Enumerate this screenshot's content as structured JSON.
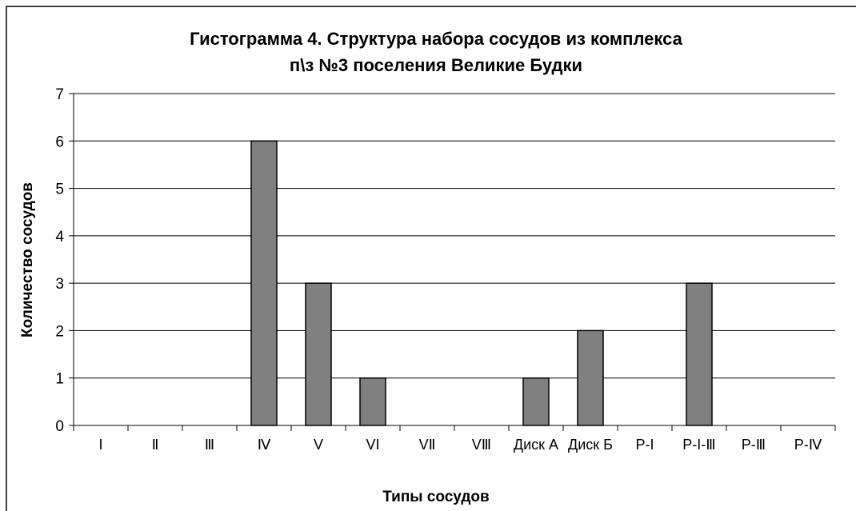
{
  "chart_data": {
    "type": "bar",
    "title": [
      "Гистограмма 4. Структура набора сосудов из комплекса",
      "п\\з №3 поселения Великие Будки"
    ],
    "x_label": "Типы сосудов",
    "y_label": "Количество сосудов",
    "categories": [
      "I",
      "Ⅱ",
      "Ⅲ",
      "Ⅳ",
      "V",
      "VI",
      "VⅡ",
      "VⅢ",
      "Диск А",
      "Диск Б",
      "Р-I",
      "Р-I-Ⅲ",
      "Р-Ⅲ",
      "Р-Ⅳ"
    ],
    "values": [
      0,
      0,
      0,
      6,
      3,
      1,
      0,
      0,
      1,
      2,
      0,
      3,
      0,
      0
    ],
    "color": "#808080",
    "ylim": [
      0,
      7
    ],
    "yticks": [
      0,
      1,
      2,
      3,
      4,
      5,
      6,
      7
    ],
    "grid": true
  }
}
